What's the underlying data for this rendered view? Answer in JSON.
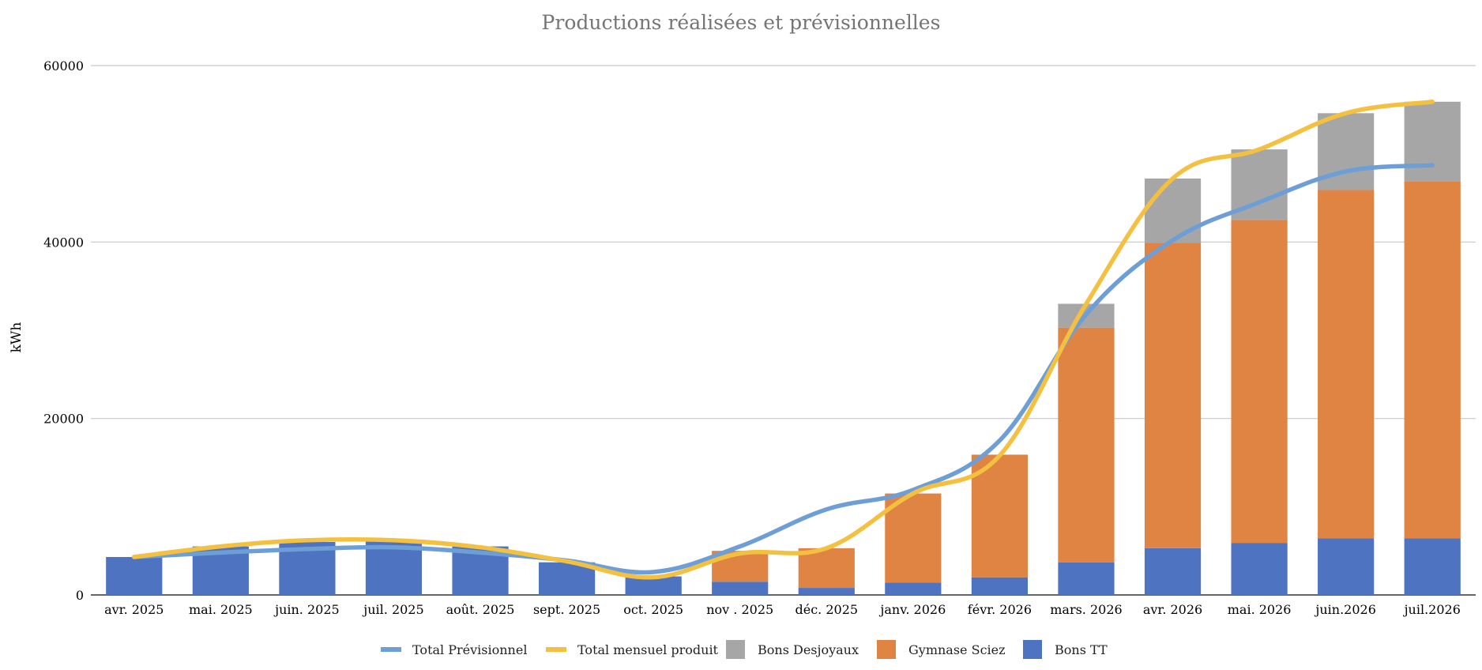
{
  "chart_data": {
    "type": "bar",
    "stacked": true,
    "title": "Productions réalisées et prévisionnelles",
    "xlabel": "",
    "ylabel": "kWh",
    "ylim": [
      0,
      60000
    ],
    "yticks": [
      0,
      20000,
      40000,
      60000
    ],
    "grid": true,
    "legend_position": "bottom",
    "categories": [
      "avr. 2025",
      "mai. 2025",
      "juin. 2025",
      "juil. 2025",
      "août. 2025",
      "sept. 2025",
      "oct. 2025",
      "nov . 2025",
      "déc. 2025",
      "janv. 2026",
      "févr. 2026",
      "mars. 2026",
      "avr. 2026",
      "mai. 2026",
      "juin.2026",
      "juil.2026"
    ],
    "bar_series": [
      {
        "name": "Bons TT",
        "color": "#4e73c1",
        "values": [
          4300,
          5500,
          6000,
          6100,
          5500,
          3700,
          2100,
          1500,
          800,
          1400,
          2000,
          3700,
          5300,
          5900,
          6400,
          6400
        ]
      },
      {
        "name": "Gymnase Sciez",
        "color": "#e08444",
        "values": [
          0,
          0,
          0,
          0,
          0,
          0,
          0,
          3500,
          4500,
          10100,
          13900,
          26600,
          34600,
          36600,
          39500,
          40500
        ]
      },
      {
        "name": "Bons Desjoyaux",
        "color": "#a6a6a6",
        "values": [
          0,
          0,
          0,
          0,
          0,
          0,
          0,
          0,
          0,
          0,
          0,
          2700,
          7300,
          8000,
          8700,
          9000
        ]
      }
    ],
    "line_series": [
      {
        "name": "Total Prévisionnel",
        "color": "#6d9fd6",
        "values": [
          4300,
          4800,
          5200,
          5400,
          4800,
          3900,
          2600,
          5500,
          9700,
          11900,
          17500,
          31800,
          40200,
          44500,
          48000,
          48700
        ]
      },
      {
        "name": "Total mensuel produit",
        "color": "#f4c040",
        "values": [
          4300,
          5500,
          6200,
          6200,
          5400,
          3800,
          2000,
          4700,
          5300,
          11500,
          15800,
          33000,
          47200,
          50500,
          54600,
          55900
        ]
      }
    ],
    "legend": [
      {
        "name": "Total Prévisionnel",
        "kind": "line",
        "color": "#6d9fd6"
      },
      {
        "name": "Total mensuel produit",
        "kind": "line",
        "color": "#f4c040"
      },
      {
        "name": "Bons Desjoyaux",
        "kind": "box",
        "color": "#a6a6a6"
      },
      {
        "name": "Gymnase Sciez",
        "kind": "box",
        "color": "#e08444"
      },
      {
        "name": "Bons TT",
        "kind": "box",
        "color": "#4e73c1"
      }
    ]
  }
}
